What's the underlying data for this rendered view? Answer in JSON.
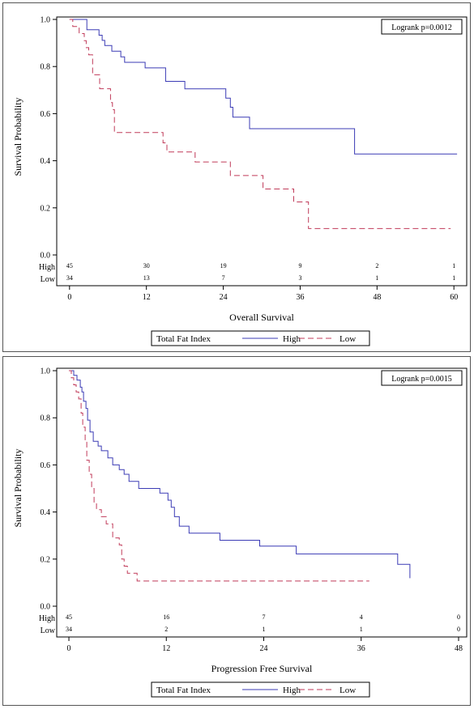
{
  "chart_data": [
    {
      "type": "line",
      "subtype": "kaplan-meier step",
      "xlabel": "Overall Survival",
      "ylabel": "Survival Probability",
      "xlim": [
        -2,
        62
      ],
      "ylim": [
        0,
        1.0
      ],
      "xticks": [
        0,
        12,
        24,
        36,
        48,
        60
      ],
      "yticks": [
        0.0,
        0.2,
        0.4,
        0.6,
        0.8,
        1.0
      ],
      "annotation": "Logrank p=0.0012",
      "legend": {
        "title": "Total Fat Index",
        "placement": "bottom",
        "entries": [
          "High",
          "Low"
        ]
      },
      "series": [
        {
          "name": "High",
          "color": "#3b3bb5",
          "dash": "solid",
          "x": [
            0,
            2.7,
            4.6,
            5.1,
            5.5,
            6.6,
            8.0,
            8.6,
            11.4,
            11.8,
            14.6,
            15.0,
            18.0,
            20.0,
            24.4,
            25.1,
            25.5,
            28.1,
            44.5,
            60.5
          ],
          "y": [
            1.0,
            0.956,
            0.933,
            0.911,
            0.889,
            0.865,
            0.841,
            0.818,
            0.818,
            0.794,
            0.794,
            0.737,
            0.705,
            0.705,
            0.666,
            0.627,
            0.585,
            0.536,
            0.429,
            0.429
          ]
        },
        {
          "name": "Low",
          "color": "#c03a59",
          "dash": "dashed",
          "x": [
            0,
            0.5,
            1.5,
            2.3,
            2.6,
            3.0,
            3.6,
            4.7,
            6.4,
            6.7,
            7.0,
            14.2,
            14.6,
            15.2,
            19.2,
            19.6,
            24.6,
            25.1,
            29.6,
            30.2,
            34.6,
            35.0,
            36.9,
            37.3,
            59.5
          ],
          "y": [
            1.0,
            0.97,
            0.94,
            0.91,
            0.88,
            0.85,
            0.765,
            0.706,
            0.647,
            0.617,
            0.52,
            0.52,
            0.476,
            0.437,
            0.437,
            0.395,
            0.395,
            0.337,
            0.337,
            0.28,
            0.28,
            0.225,
            0.225,
            0.112,
            0.112
          ]
        }
      ],
      "risk_table": {
        "labels": [
          "High",
          "Low"
        ],
        "times": [
          0,
          12,
          24,
          36,
          48,
          60
        ],
        "High": [
          "45",
          "30",
          "19",
          "9",
          "2",
          "1"
        ],
        "Low": [
          "34",
          "13",
          "7",
          "3",
          "1",
          "1"
        ]
      }
    },
    {
      "type": "line",
      "subtype": "kaplan-meier step",
      "xlabel": "Progression Free Survival",
      "ylabel": "Survival Probability",
      "xlim": [
        -1.5,
        49
      ],
      "ylim": [
        0,
        1.0
      ],
      "xticks": [
        0,
        12,
        24,
        36,
        48
      ],
      "yticks": [
        0.0,
        0.2,
        0.4,
        0.6,
        0.8,
        1.0
      ],
      "annotation": "Logrank p=0.0015",
      "legend": {
        "title": "Total Fat Index",
        "placement": "bottom",
        "entries": [
          "High",
          "Low"
        ]
      },
      "series": [
        {
          "name": "High",
          "color": "#3b3bb5",
          "dash": "solid",
          "x": [
            0,
            0.6,
            1.0,
            1.4,
            1.6,
            1.8,
            2.1,
            2.3,
            2.6,
            3.0,
            3.6,
            4.0,
            4.8,
            5.4,
            6.2,
            6.8,
            7.4,
            8.6,
            11.2,
            12.2,
            12.6,
            13.0,
            13.6,
            14.8,
            18.6,
            23.5,
            28.0,
            40.5,
            42.0
          ],
          "y": [
            1.0,
            0.98,
            0.96,
            0.93,
            0.91,
            0.87,
            0.84,
            0.79,
            0.74,
            0.7,
            0.68,
            0.66,
            0.63,
            0.6,
            0.58,
            0.56,
            0.53,
            0.5,
            0.48,
            0.45,
            0.42,
            0.38,
            0.34,
            0.31,
            0.28,
            0.255,
            0.222,
            0.178,
            0.119
          ]
        },
        {
          "name": "Low",
          "color": "#c03a59",
          "dash": "dashed",
          "x": [
            0,
            0.3,
            0.6,
            0.9,
            1.2,
            1.5,
            1.7,
            2.0,
            2.2,
            2.5,
            2.8,
            3.1,
            3.4,
            4.0,
            4.6,
            5.4,
            6.2,
            6.5,
            6.8,
            7.2,
            8.4,
            37.0
          ],
          "y": [
            1.0,
            0.97,
            0.94,
            0.91,
            0.88,
            0.82,
            0.76,
            0.7,
            0.62,
            0.56,
            0.5,
            0.44,
            0.41,
            0.38,
            0.35,
            0.29,
            0.26,
            0.2,
            0.17,
            0.14,
            0.107,
            0.107
          ]
        }
      ],
      "risk_table": {
        "labels": [
          "High",
          "Low"
        ],
        "times": [
          0,
          12,
          24,
          36,
          48
        ],
        "High": [
          "45",
          "16",
          "7",
          "4",
          "0"
        ],
        "Low": [
          "34",
          "2",
          "1",
          "1",
          "0"
        ]
      }
    }
  ]
}
